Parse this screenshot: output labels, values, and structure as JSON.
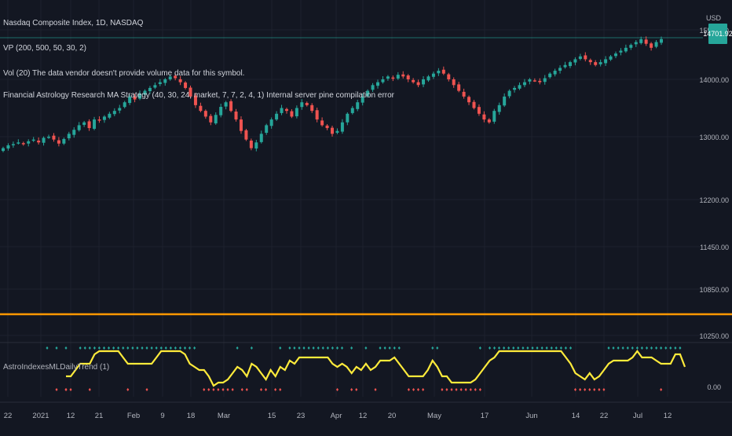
{
  "header": {
    "symbol_line": "Nasdaq Composite Index, 1D, NASDAQ",
    "vp_line": "VP (200, 500, 50, 30, 2)",
    "vol_line": "Vol (20) The data vendor doesn't provide volume data for this symbol.",
    "strategy_line": "Financial Astrology Research MA Strategy (40, 30, 24, market, 7, 7, 2, 4, 1) Internal server pine compilation error"
  },
  "price_axis": {
    "currency_label": "USD",
    "last_price_tag": "14701.92",
    "last_price_tag_color": "#26a69a"
  },
  "subpane": {
    "indicator_label": "AstroIndexesMLDailyTrend (1)",
    "line_color": "#ffeb3b",
    "up_marker_color": "#26a69a",
    "down_marker_color": "#ef5350"
  },
  "horizontal_line": {
    "color": "#ff9800"
  },
  "chart_data": [
    {
      "type": "candlestick",
      "title": "Nasdaq Composite Index, 1D, NASDAQ",
      "y_ticks": [
        "15500.00",
        "14000.00",
        "13000.00",
        "12200.00",
        "11450.00",
        "10850.00",
        "10250.00"
      ],
      "x_ticks": [
        "22",
        "2021",
        "12",
        "21",
        "Feb",
        "9",
        "18",
        "Mar",
        "15",
        "23",
        "Apr",
        "12",
        "20",
        "May",
        "17",
        "Jun",
        "14",
        "22",
        "Jul",
        "12"
      ],
      "close": [
        12800,
        12850,
        12870,
        12900,
        12880,
        12920,
        12950,
        12900,
        12980,
        13000,
        12950,
        12880,
        12960,
        13050,
        13120,
        13200,
        13250,
        13150,
        13300,
        13280,
        13350,
        13400,
        13450,
        13500,
        13600,
        13700,
        13650,
        13750,
        13800,
        13850,
        13900,
        13950,
        14000,
        14050,
        14020,
        13950,
        13850,
        13700,
        13550,
        13450,
        13350,
        13250,
        13380,
        13520,
        13600,
        13450,
        13300,
        13100,
        12950,
        12800,
        12900,
        13050,
        13200,
        13300,
        13400,
        13500,
        13450,
        13350,
        13500,
        13600,
        13550,
        13450,
        13300,
        13200,
        13150,
        13050,
        13100,
        13250,
        13400,
        13500,
        13600,
        13700,
        13800,
        13900,
        13950,
        14000,
        14050,
        14020,
        14080,
        14050,
        14000,
        13950,
        13900,
        14000,
        14050,
        14100,
        14150,
        14100,
        14000,
        13900,
        13800,
        13700,
        13600,
        13500,
        13400,
        13300,
        13250,
        13450,
        13550,
        13700,
        13800,
        13850,
        13900,
        13950,
        14000,
        13980,
        13950,
        14020,
        14100,
        14150,
        14200,
        14250,
        14300,
        14350,
        14400,
        14350,
        14300,
        14250,
        14300,
        14350,
        14400,
        14450,
        14500,
        14550,
        14600,
        14650,
        14700,
        14620,
        14550,
        14650,
        14701.92
      ],
      "line_y_ticks": [
        "0.00"
      ]
    },
    {
      "type": "line",
      "title": "AstroIndexesMLDailyTrend (1)",
      "y_ticks": [
        "0.00"
      ],
      "values": [
        0.2,
        0.2,
        0.4,
        0.6,
        0.6,
        0.6,
        0.9,
        1.0,
        1.0,
        1.0,
        1.0,
        1.0,
        0.8,
        0.6,
        0.6,
        0.6,
        0.6,
        0.6,
        0.6,
        0.8,
        1.0,
        1.0,
        1.0,
        1.0,
        1.0,
        0.9,
        0.6,
        0.5,
        0.4,
        0.4,
        0.2,
        -0.1,
        0.0,
        0.0,
        0.1,
        0.3,
        0.5,
        0.4,
        0.2,
        0.6,
        0.5,
        0.3,
        0.1,
        0.4,
        0.2,
        0.5,
        0.4,
        0.7,
        0.6,
        0.8,
        0.8,
        0.8,
        0.8,
        0.8,
        0.8,
        0.8,
        0.6,
        0.5,
        0.6,
        0.5,
        0.3,
        0.5,
        0.4,
        0.6,
        0.4,
        0.5,
        0.7,
        0.7,
        0.7,
        0.8,
        0.6,
        0.4,
        0.2,
        0.2,
        0.2,
        0.2,
        0.4,
        0.7,
        0.5,
        0.2,
        0.2,
        0.0,
        0.0,
        0.0,
        0.0,
        0.0,
        0.1,
        0.3,
        0.5,
        0.7,
        0.8,
        1.0,
        1.0,
        1.0,
        1.0,
        1.0,
        1.0,
        1.0,
        1.0,
        1.0,
        1.0,
        1.0,
        1.0,
        1.0,
        1.0,
        0.8,
        0.6,
        0.3,
        0.2,
        0.1,
        0.3,
        0.1,
        0.2,
        0.4,
        0.6,
        0.7,
        0.7,
        0.7,
        0.7,
        0.8,
        1.0,
        0.8,
        0.8,
        0.8,
        0.7,
        0.6,
        0.6,
        0.6,
        0.9,
        0.9,
        0.5
      ]
    }
  ]
}
